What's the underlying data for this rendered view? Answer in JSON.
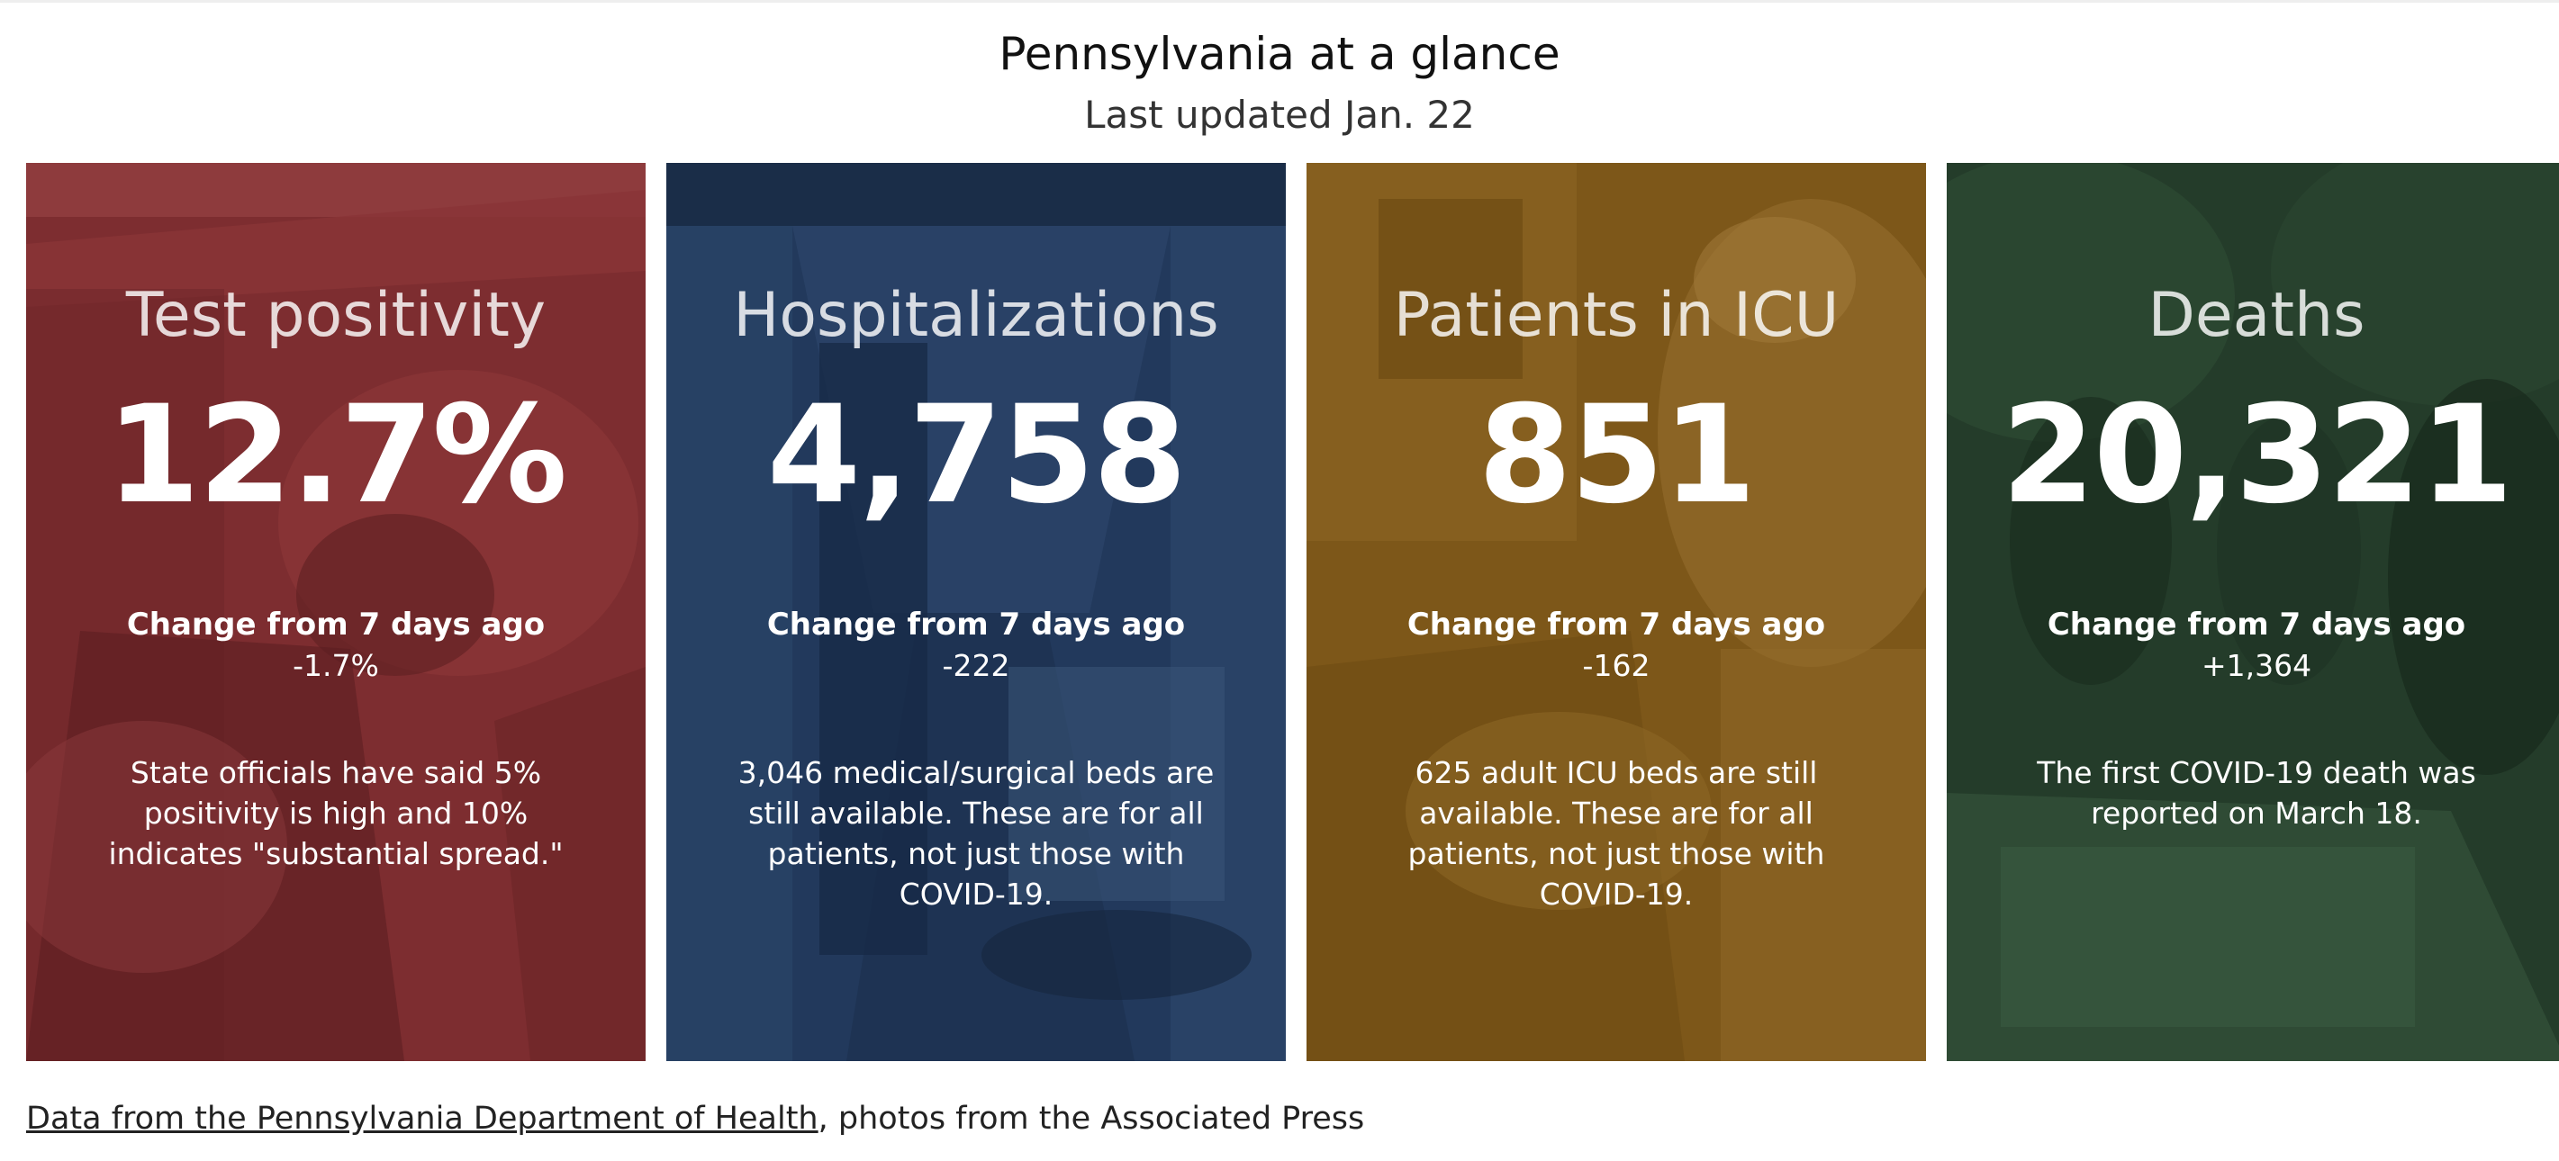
{
  "header": {
    "title": "Pennsylvania at a glance",
    "subtitle": "Last updated Jan. 22"
  },
  "cards": [
    {
      "title": "Test positivity",
      "value": "12.7%",
      "change_label": "Change from 7 days ago",
      "change_value": "-1.7%",
      "note": "State officials have said 5% positivity is high and 10% indicates \"substantial spread.\"",
      "color": "#7a2a2c"
    },
    {
      "title": "Hospitalizations",
      "value": "4,758",
      "change_label": "Change from 7 days ago",
      "change_value": "-222",
      "note": "3,046 medical/surgical beds are still available. These are for all patients, not just those with COVID-19.",
      "color": "#1f3556"
    },
    {
      "title": "Patients in ICU",
      "value": "851",
      "change_label": "Change from 7 days ago",
      "change_value": "-162",
      "note": "625 adult ICU beds are still available. These are for all patients, not just those with COVID-19.",
      "color": "#7a5417"
    },
    {
      "title": "Deaths",
      "value": "20,321",
      "change_label": "Change from 7 days ago",
      "change_value": "+1,364",
      "note": "The first COVID-19 death was reported on March 18.",
      "color": "#233a28"
    }
  ],
  "footer": {
    "link_text": "Data from the Pennsylvania Department of Health",
    "rest_text": ", photos from the Associated Press"
  }
}
